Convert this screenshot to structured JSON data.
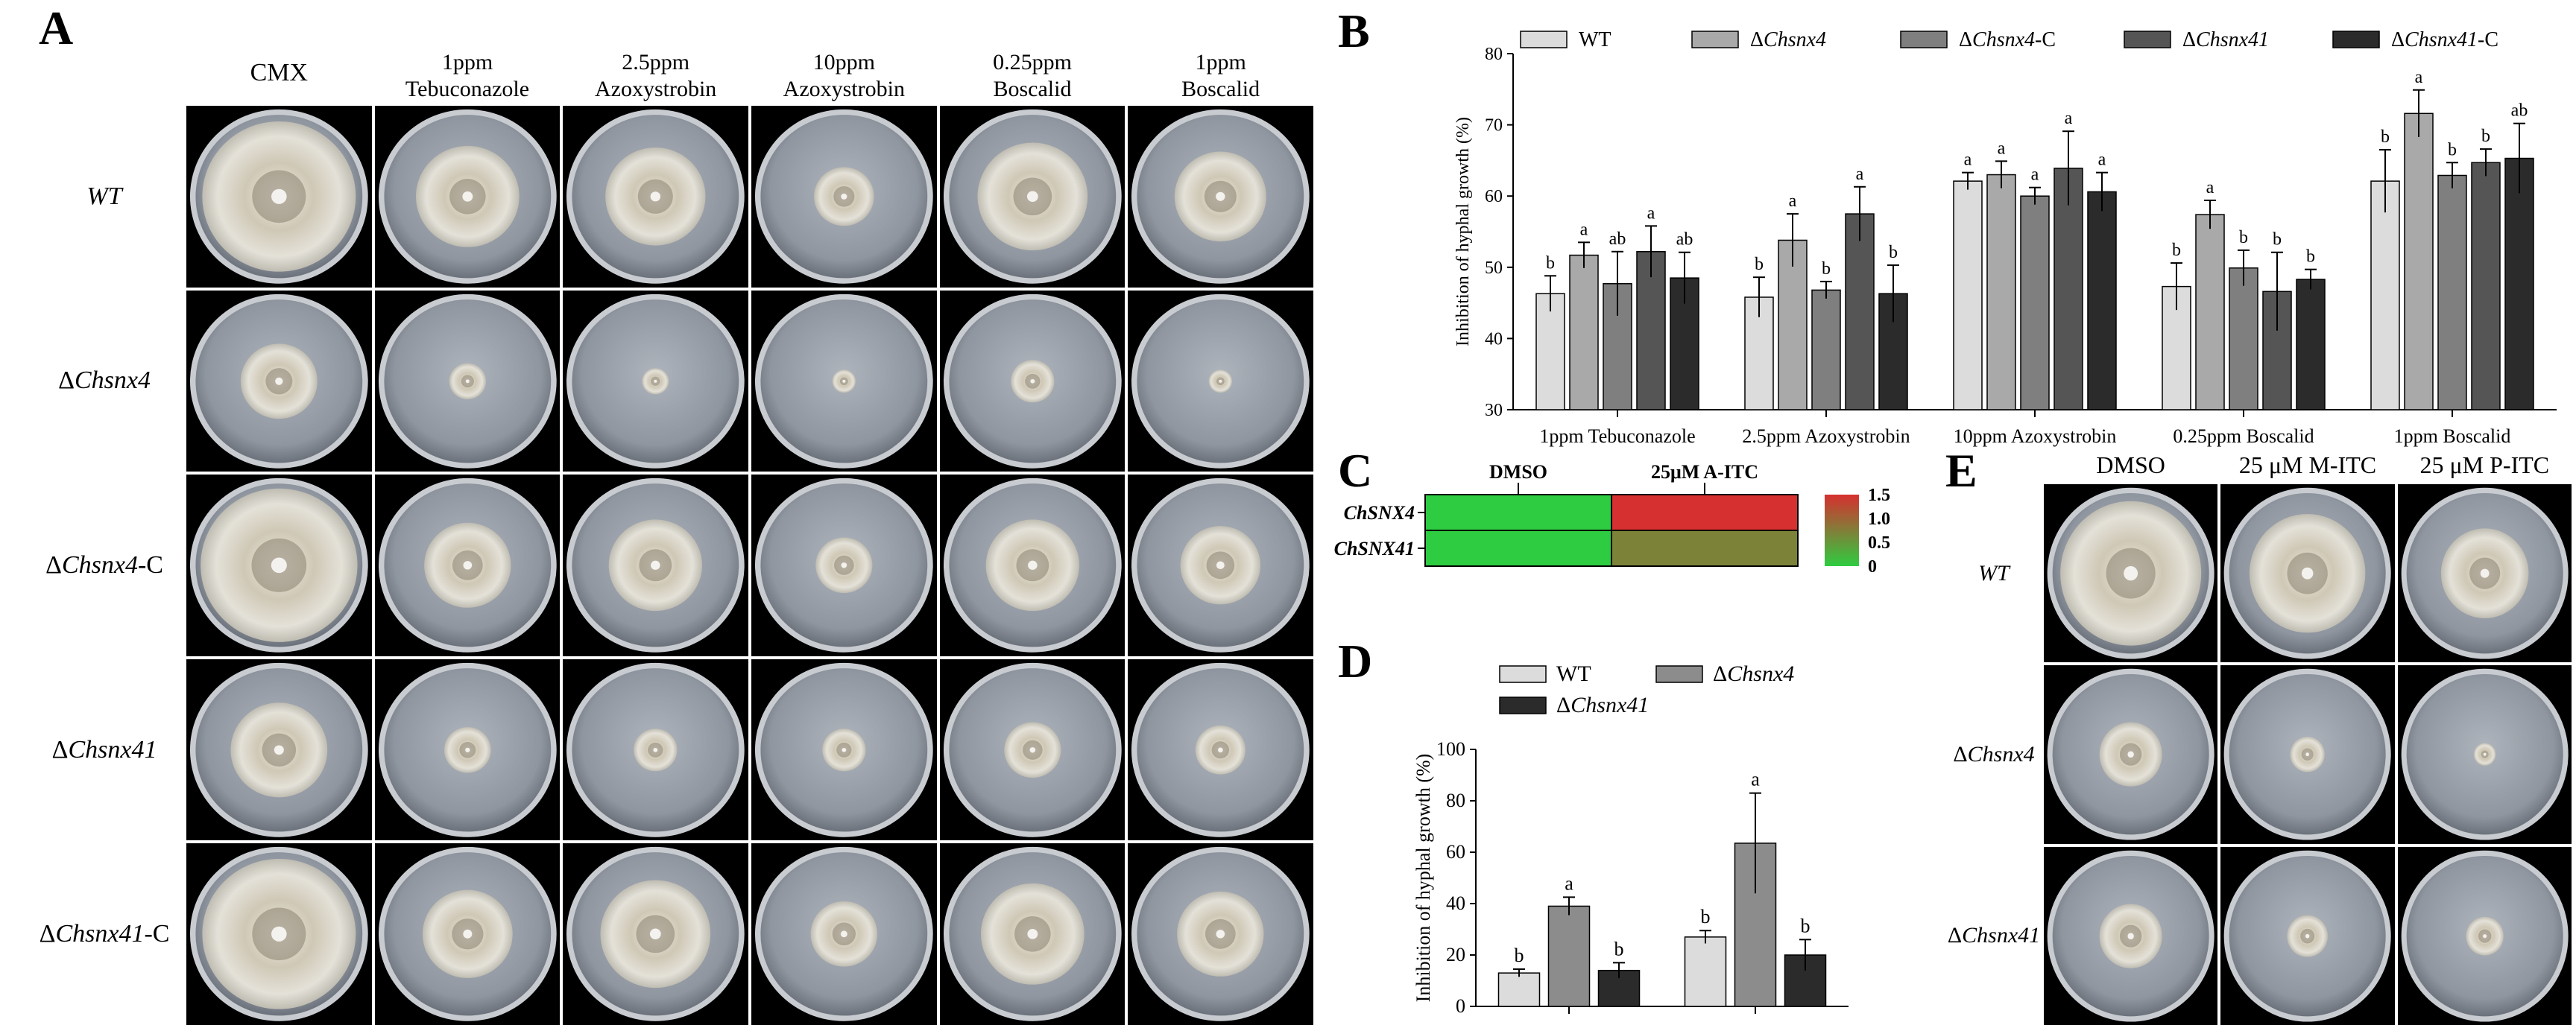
{
  "panels": {
    "A": {
      "letter": "A",
      "columns": [
        {
          "line1": "CMX",
          "line2": ""
        },
        {
          "line1": "1ppm",
          "line2": "Tebuconazole"
        },
        {
          "line1": "2.5ppm",
          "line2": "Azoxystrobin"
        },
        {
          "line1": "10ppm",
          "line2": "Azoxystrobin"
        },
        {
          "line1": "0.25ppm",
          "line2": "Boscalid"
        },
        {
          "line1": "1ppm",
          "line2": "Boscalid"
        }
      ],
      "rows": [
        {
          "prefix": "",
          "name": "WT",
          "suffix": ""
        },
        {
          "prefix": "Δ",
          "name": "Chsnx4",
          "suffix": ""
        },
        {
          "prefix": "Δ",
          "name": "Chsnx4",
          "suffix": "-C"
        },
        {
          "prefix": "Δ",
          "name": "Chsnx41",
          "suffix": ""
        },
        {
          "prefix": "Δ",
          "name": "Chsnx41",
          "suffix": "-C"
        }
      ],
      "colony_sizes": [
        [
          0.92,
          0.62,
          0.6,
          0.36,
          0.66,
          0.55
        ],
        [
          0.46,
          0.22,
          0.16,
          0.14,
          0.26,
          0.14
        ],
        [
          0.94,
          0.52,
          0.56,
          0.34,
          0.56,
          0.48
        ],
        [
          0.58,
          0.28,
          0.26,
          0.26,
          0.34,
          0.3
        ],
        [
          0.92,
          0.54,
          0.66,
          0.4,
          0.62,
          0.52
        ]
      ]
    },
    "B": {
      "letter": "B",
      "legend": [
        {
          "label": "WT",
          "color": "#dcdcdc"
        },
        {
          "label": "ΔChsnx4",
          "color": "#a9a9a9"
        },
        {
          "label": "ΔChsnx4-C",
          "color": "#7f7f7f"
        },
        {
          "label": "ΔChsnx41",
          "color": "#555555"
        },
        {
          "label": "ΔChsnx41-C",
          "color": "#2b2b2b"
        }
      ]
    },
    "C": {
      "letter": "C",
      "col_labels": [
        "DMSO",
        "25μM A-ITC"
      ],
      "row_labels": [
        "ChSNX4",
        "ChSNX41"
      ],
      "values": [
        [
          0.0,
          1.5
        ],
        [
          0.0,
          0.7
        ]
      ],
      "scale_ticks": [
        "1.5",
        "1.0",
        "0.5",
        "0"
      ],
      "scale_range": [
        0,
        1.5
      ]
    },
    "D": {
      "letter": "D",
      "legend": [
        {
          "label": "WT",
          "color": "#dcdcdc"
        },
        {
          "label": "ΔChsnx4",
          "color": "#8c8c8c"
        },
        {
          "label": "ΔChsnx41",
          "color": "#2b2b2b"
        }
      ]
    },
    "E": {
      "letter": "E",
      "columns": [
        "DMSO",
        "25 μM M-ITC",
        "25 μM P-ITC"
      ],
      "rows": [
        {
          "prefix": "",
          "name": "WT"
        },
        {
          "prefix": "Δ",
          "name": "Chsnx4"
        },
        {
          "prefix": "Δ",
          "name": "Chsnx41"
        }
      ],
      "colony_sizes": [
        [
          0.9,
          0.74,
          0.56
        ],
        [
          0.4,
          0.22,
          0.14
        ],
        [
          0.4,
          0.26,
          0.24
        ]
      ]
    }
  },
  "chart_data": [
    {
      "type": "bar",
      "panel": "B",
      "title": "",
      "xlabel": "",
      "ylabel": "Inhibition of hyphal growth (%)",
      "ylim": [
        30,
        80
      ],
      "yticks": [
        30,
        40,
        50,
        60,
        70,
        80
      ],
      "categories": [
        "1ppm Tebuconazole",
        "2.5ppm Azoxystrobin",
        "10ppm Azoxystrobin",
        "0.25ppm Boscalid",
        "1ppm Boscalid"
      ],
      "series": [
        {
          "name": "WT",
          "values": [
            46.3,
            45.8,
            62.1,
            47.3,
            62.1
          ],
          "errors": [
            2.5,
            2.8,
            1.2,
            3.3,
            4.4
          ],
          "letters": [
            "b",
            "b",
            "a",
            "b",
            "b"
          ]
        },
        {
          "name": "ΔChsnx4",
          "values": [
            51.7,
            53.8,
            63.0,
            57.4,
            71.6
          ],
          "errors": [
            1.8,
            3.7,
            1.9,
            2.0,
            3.3
          ],
          "letters": [
            "a",
            "a",
            "a",
            "a",
            "a"
          ]
        },
        {
          "name": "ΔChsnx4-C",
          "values": [
            47.7,
            46.8,
            60.0,
            49.9,
            62.9
          ],
          "errors": [
            4.5,
            1.2,
            1.2,
            2.5,
            1.8
          ],
          "letters": [
            "ab",
            "b",
            "a",
            "b",
            "b"
          ]
        },
        {
          "name": "ΔChsnx41",
          "values": [
            52.2,
            57.5,
            63.9,
            46.6,
            64.7
          ],
          "errors": [
            3.6,
            3.8,
            5.2,
            5.5,
            1.9
          ],
          "letters": [
            "a",
            "a",
            "a",
            "b",
            "b"
          ]
        },
        {
          "name": "ΔChsnx41-C",
          "values": [
            48.5,
            46.3,
            60.6,
            48.3,
            65.3
          ],
          "errors": [
            3.6,
            4.0,
            2.7,
            1.4,
            4.9
          ],
          "letters": [
            "ab",
            "b",
            "a",
            "b",
            "ab"
          ]
        }
      ]
    },
    {
      "type": "heatmap",
      "panel": "C",
      "x": [
        "DMSO",
        "25μM A-ITC"
      ],
      "y": [
        "ChSNX4",
        "ChSNX41"
      ],
      "values": [
        [
          0.0,
          1.5
        ],
        [
          0.0,
          0.7
        ]
      ],
      "color_range": [
        0,
        1.5
      ]
    },
    {
      "type": "bar",
      "panel": "D",
      "title": "",
      "xlabel": "",
      "ylabel": "Inhibition of hyphal growth (%)",
      "ylim": [
        0,
        100
      ],
      "yticks": [
        0,
        20,
        40,
        60,
        80,
        100
      ],
      "categories": [
        "",
        ""
      ],
      "series": [
        {
          "name": "WT",
          "values": [
            13.0,
            27.0
          ],
          "errors": [
            1.5,
            2.5
          ],
          "letters": [
            "b",
            "b"
          ]
        },
        {
          "name": "ΔChsnx4",
          "values": [
            39.0,
            63.5
          ],
          "errors": [
            3.5,
            19.5
          ],
          "letters": [
            "a",
            "a"
          ]
        },
        {
          "name": "ΔChsnx41",
          "values": [
            14.0,
            20.0
          ],
          "errors": [
            3.0,
            6.0
          ],
          "letters": [
            "b",
            "b"
          ]
        }
      ]
    }
  ]
}
